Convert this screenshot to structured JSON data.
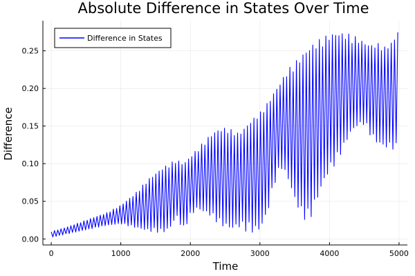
{
  "chart_data": {
    "type": "line",
    "title": "Absolute Difference in States Over Time",
    "xlabel": "Time",
    "ylabel": "Difference",
    "xlim": [
      -120,
      5120
    ],
    "ylim": [
      -0.008,
      0.29
    ],
    "xticks": [
      0,
      1000,
      2000,
      3000,
      4000,
      5000
    ],
    "xtick_labels": [
      "0",
      "1000",
      "2000",
      "3000",
      "4000",
      "5000"
    ],
    "yticks": [
      0.0,
      0.05,
      0.1,
      0.15,
      0.2,
      0.25
    ],
    "ytick_labels": [
      "0.00",
      "0.05",
      "0.10",
      "0.15",
      "0.20",
      "0.25"
    ],
    "grid": true,
    "legend": {
      "position": "top-left"
    },
    "series": [
      {
        "name": "Difference in States",
        "color": "#0000ff",
        "note_period": 47,
        "envelope_upper": {
          "x": [
            0,
            200,
            500,
            800,
            1000,
            1200,
            1400,
            1600,
            1700,
            1800,
            1900,
            1950,
            2000,
            2100,
            2200,
            2300,
            2400,
            2500,
            2600,
            2700,
            2800,
            2900,
            3000,
            3100,
            3200,
            3300,
            3400,
            3500,
            3600,
            3700,
            3800,
            3900,
            4000,
            4100,
            4200,
            4300,
            4400,
            4500,
            4600,
            4700,
            4800,
            4900,
            4950,
            5000
          ],
          "y": [
            0.01,
            0.015,
            0.025,
            0.035,
            0.045,
            0.06,
            0.08,
            0.095,
            0.1,
            0.106,
            0.1,
            0.105,
            0.11,
            0.12,
            0.13,
            0.14,
            0.146,
            0.148,
            0.145,
            0.14,
            0.15,
            0.16,
            0.168,
            0.18,
            0.195,
            0.21,
            0.225,
            0.235,
            0.245,
            0.255,
            0.262,
            0.268,
            0.272,
            0.275,
            0.274,
            0.272,
            0.268,
            0.262,
            0.258,
            0.26,
            0.255,
            0.262,
            0.27,
            0.282
          ]
        },
        "envelope_lower": {
          "x": [
            0,
            200,
            500,
            800,
            1000,
            1200,
            1400,
            1600,
            1700,
            1800,
            1900,
            1950,
            2000,
            2100,
            2200,
            2300,
            2400,
            2500,
            2600,
            2700,
            2800,
            2900,
            3000,
            3100,
            3200,
            3300,
            3400,
            3500,
            3600,
            3700,
            3800,
            3900,
            4000,
            4100,
            4200,
            4300,
            4400,
            4500,
            4600,
            4700,
            4800,
            4900,
            4950,
            5000
          ],
          "y": [
            0.002,
            0.006,
            0.012,
            0.018,
            0.02,
            0.015,
            0.01,
            0.008,
            0.012,
            0.03,
            0.01,
            0.02,
            0.03,
            0.04,
            0.035,
            0.03,
            0.02,
            0.015,
            0.012,
            0.015,
            0.01,
            0.008,
            0.01,
            0.03,
            0.07,
            0.095,
            0.08,
            0.05,
            0.03,
            0.02,
            0.045,
            0.07,
            0.09,
            0.1,
            0.12,
            0.14,
            0.15,
            0.152,
            0.135,
            0.125,
            0.12,
            0.12,
            0.115,
            0.105
          ]
        },
        "mid_level": {
          "x": [
            0,
            1000,
            2000,
            2600,
            3000,
            3400,
            3600,
            4000,
            4500,
            5000
          ],
          "y": [
            0.006,
            0.03,
            0.075,
            0.095,
            0.12,
            0.16,
            0.15,
            0.19,
            0.2,
            0.215
          ]
        }
      }
    ]
  }
}
